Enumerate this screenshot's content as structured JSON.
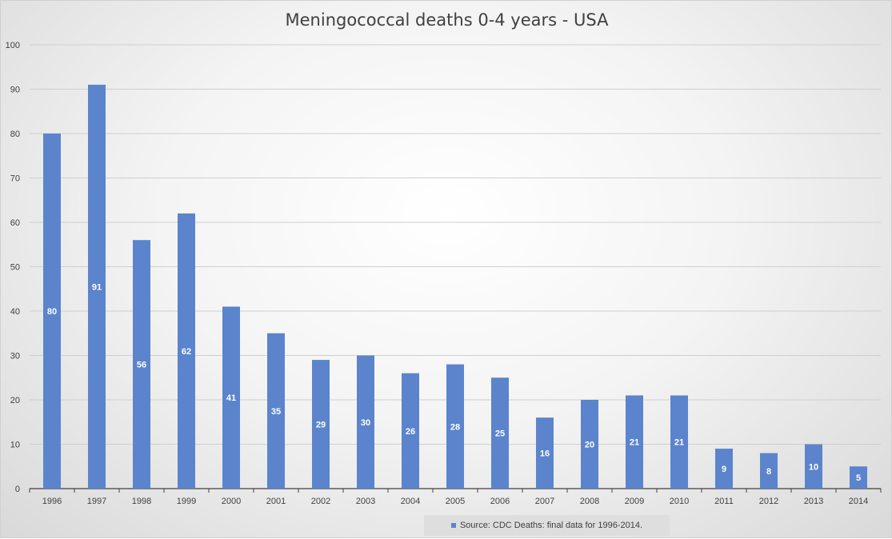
{
  "chart_data": {
    "type": "bar",
    "title": "Meningococcal deaths 0-4 years - USA",
    "categories": [
      "1996",
      "1997",
      "1998",
      "1999",
      "2000",
      "2001",
      "2002",
      "2003",
      "2004",
      "2005",
      "2006",
      "2007",
      "2008",
      "2009",
      "2010",
      "2011",
      "2012",
      "2013",
      "2014"
    ],
    "series": [
      {
        "name": "Source: CDC Deaths: final data for 1996-2014.",
        "values": [
          80,
          91,
          56,
          62,
          41,
          35,
          29,
          30,
          26,
          28,
          25,
          16,
          20,
          21,
          21,
          9,
          8,
          10,
          5
        ]
      }
    ],
    "ylim": [
      0,
      100
    ],
    "yticks": [
      0,
      10,
      20,
      30,
      40,
      50,
      60,
      70,
      80,
      90,
      100
    ],
    "grid": true,
    "legend_position": "bottom",
    "data_labels": true,
    "colors": {
      "bar": "#5b84cc",
      "grid": "#cfcfcf",
      "axis": "#404040",
      "label": "#ffffff"
    }
  }
}
